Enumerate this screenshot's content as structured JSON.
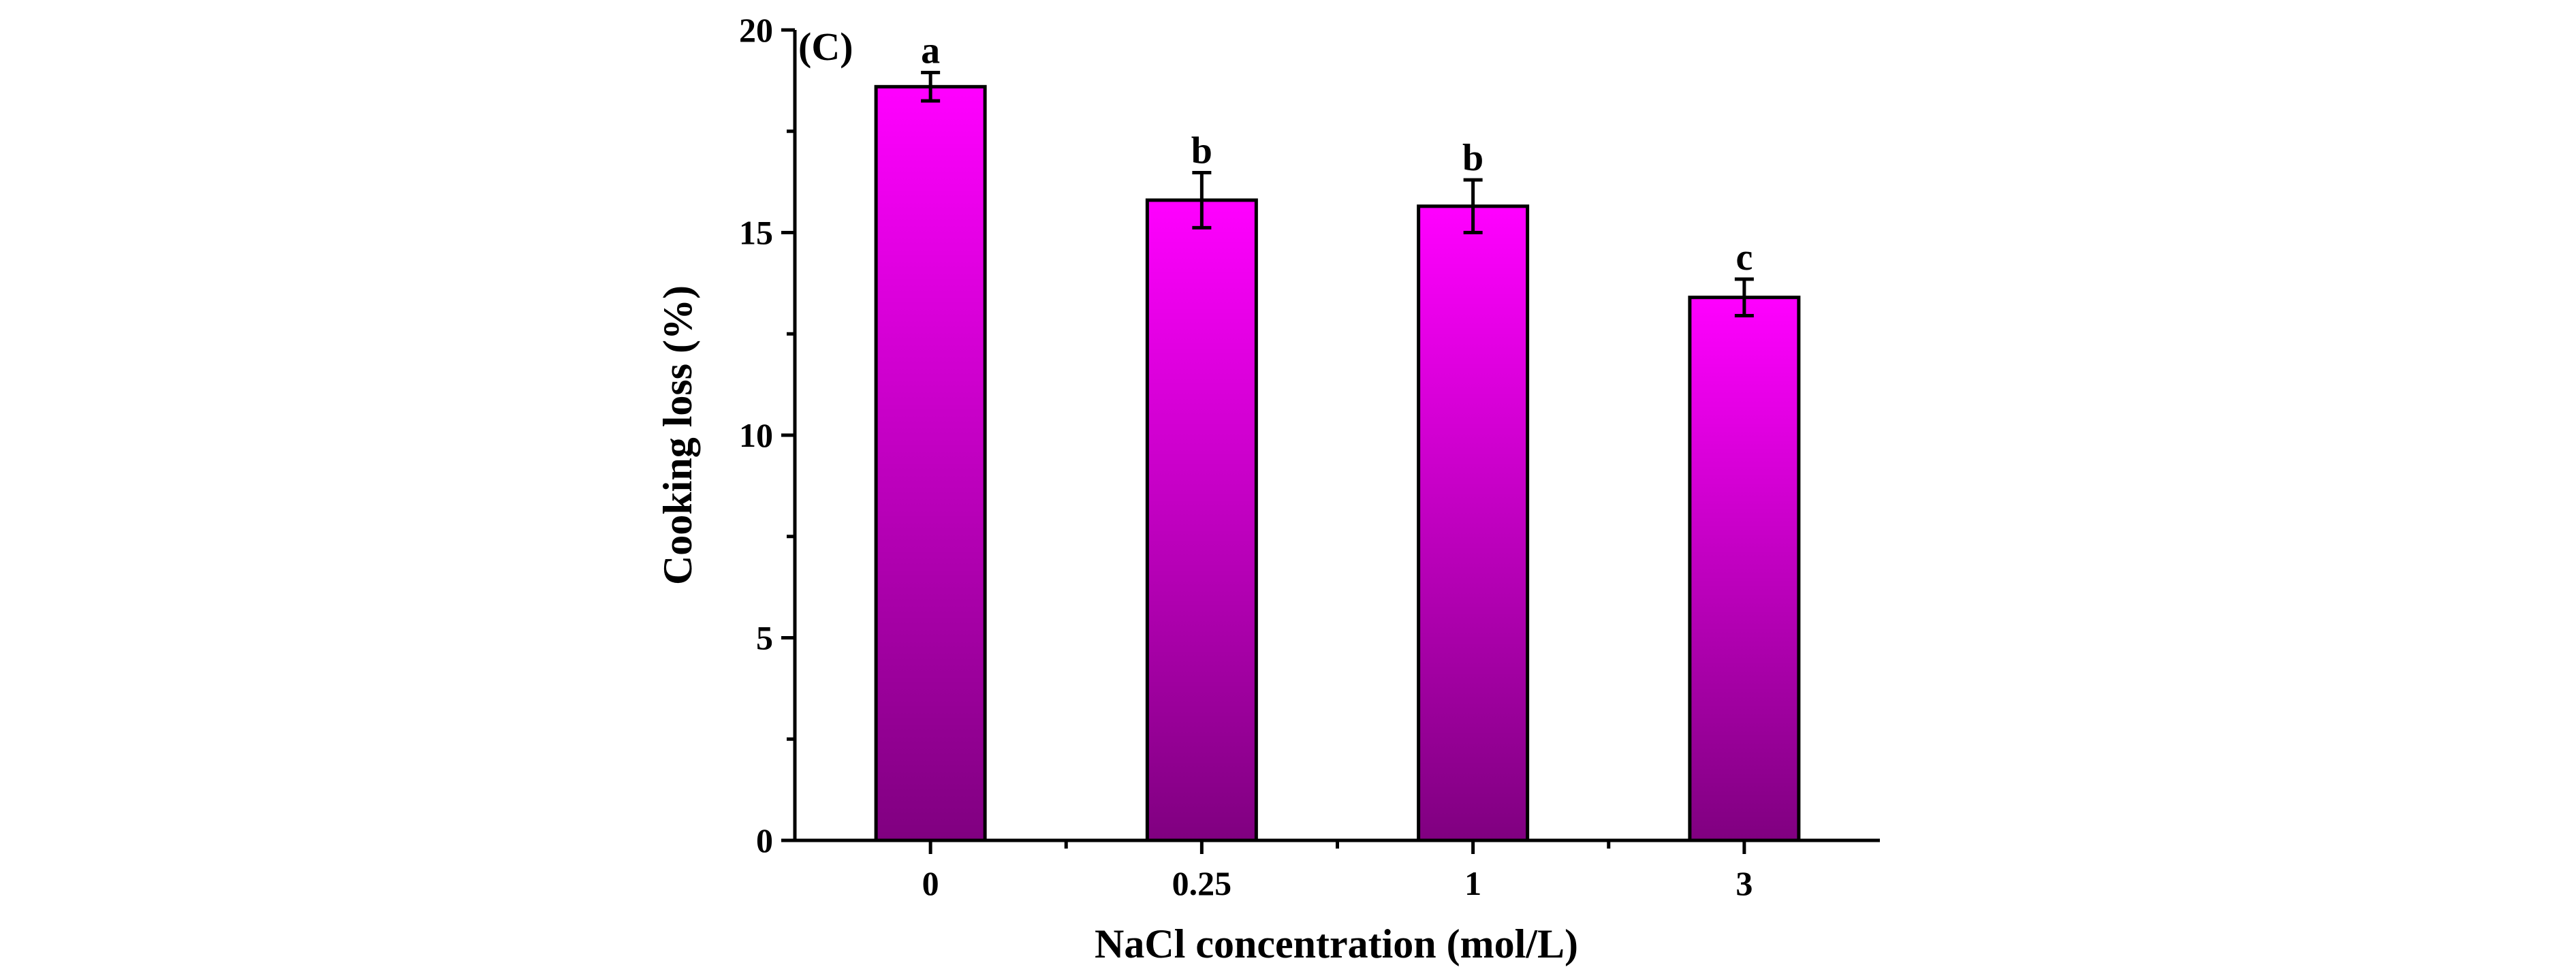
{
  "chart_data": {
    "type": "bar",
    "panel_label": "(C)",
    "title": "",
    "xlabel": "NaCl concentration (mol/L)",
    "ylabel": "Cooking loss (%)",
    "categories": [
      "0",
      "0.25",
      "1",
      "3"
    ],
    "values": [
      18.6,
      15.8,
      15.65,
      13.4
    ],
    "errors": [
      0.35,
      0.68,
      0.65,
      0.45
    ],
    "significance": [
      "a",
      "b",
      "b",
      "c"
    ],
    "ylim": [
      0,
      20
    ],
    "yticks": [
      "0",
      "5",
      "10",
      "15",
      "20"
    ],
    "grid": false,
    "legend": "none",
    "bar_color_top": "#ff00ff",
    "bar_color_bottom": "#800080"
  }
}
